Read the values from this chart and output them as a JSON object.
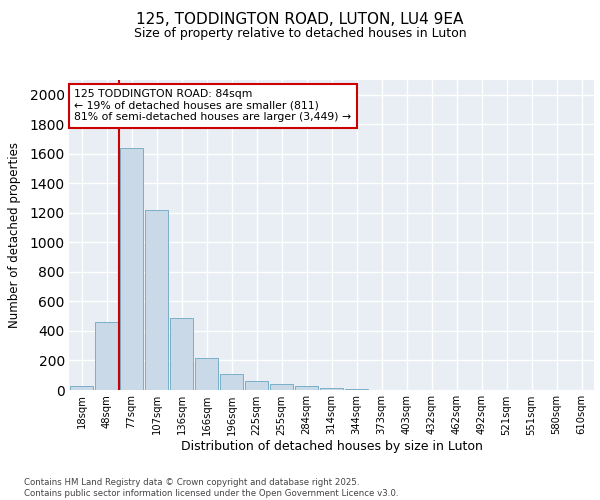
{
  "title1": "125, TODDINGTON ROAD, LUTON, LU4 9EA",
  "title2": "Size of property relative to detached houses in Luton",
  "xlabel": "Distribution of detached houses by size in Luton",
  "ylabel": "Number of detached properties",
  "categories": [
    "18sqm",
    "48sqm",
    "77sqm",
    "107sqm",
    "136sqm",
    "166sqm",
    "196sqm",
    "225sqm",
    "255sqm",
    "284sqm",
    "314sqm",
    "344sqm",
    "373sqm",
    "403sqm",
    "432sqm",
    "462sqm",
    "492sqm",
    "521sqm",
    "551sqm",
    "580sqm",
    "610sqm"
  ],
  "values": [
    30,
    460,
    1640,
    1220,
    490,
    220,
    110,
    60,
    40,
    25,
    15,
    5,
    3,
    2,
    1,
    1,
    1,
    0,
    0,
    0,
    0
  ],
  "bar_color": "#c9d9e8",
  "bar_edge_color": "#7aafc8",
  "bg_color": "#e8eef4",
  "grid_color": "#ffffff",
  "vline_color": "#cc0000",
  "annotation_text": "125 TODDINGTON ROAD: 84sqm\n← 19% of detached houses are smaller (811)\n81% of semi-detached houses are larger (3,449) →",
  "annotation_box_edgecolor": "#cc0000",
  "footer1": "Contains HM Land Registry data © Crown copyright and database right 2025.",
  "footer2": "Contains public sector information licensed under the Open Government Licence v3.0.",
  "ylim": [
    0,
    2100
  ],
  "yticks": [
    0,
    200,
    400,
    600,
    800,
    1000,
    1200,
    1400,
    1600,
    1800,
    2000
  ]
}
